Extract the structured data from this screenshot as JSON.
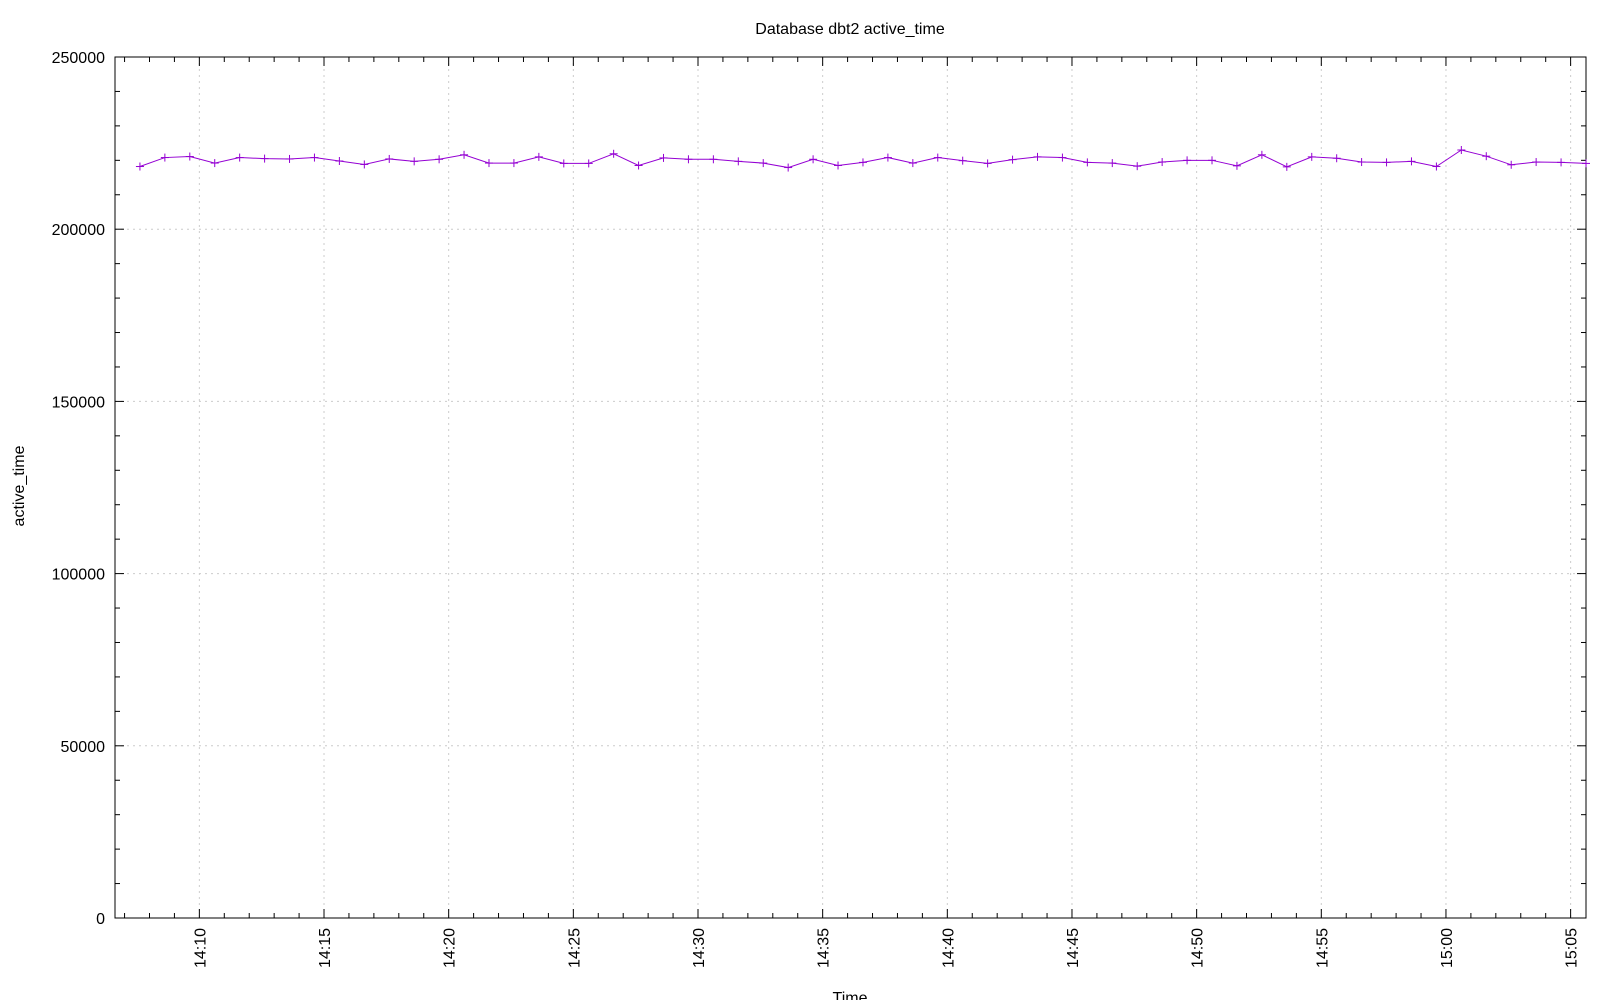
{
  "chart_data": {
    "type": "line",
    "title": "Database dbt2 active_time",
    "xlabel": "Time",
    "ylabel": "active_time",
    "x_ticks": [
      "14:10",
      "14:15",
      "14:20",
      "14:25",
      "14:30",
      "14:35",
      "14:40",
      "14:45",
      "14:50",
      "14:55",
      "15:00",
      "15:05"
    ],
    "y_ticks": [
      0,
      50000,
      100000,
      150000,
      200000,
      250000
    ],
    "ylim": [
      0,
      250000
    ],
    "xlim": [
      "14:06:37",
      "15:05:37"
    ],
    "grid": true,
    "series": [
      {
        "color": "#9400d3",
        "marker": "plus",
        "x": [
          "14:07:37",
          "14:08:37",
          "14:09:37",
          "14:10:37",
          "14:11:37",
          "14:12:37",
          "14:13:37",
          "14:14:37",
          "14:15:37",
          "14:16:37",
          "14:17:37",
          "14:18:37",
          "14:19:37",
          "14:20:37",
          "14:21:37",
          "14:22:37",
          "14:23:37",
          "14:24:37",
          "14:25:37",
          "14:26:37",
          "14:27:37",
          "14:28:37",
          "14:29:37",
          "14:30:37",
          "14:31:37",
          "14:32:37",
          "14:33:37",
          "14:34:37",
          "14:35:37",
          "14:36:37",
          "14:37:37",
          "14:38:37",
          "14:39:37",
          "14:40:37",
          "14:41:37",
          "14:42:37",
          "14:43:37",
          "14:44:37",
          "14:45:37",
          "14:46:37",
          "14:47:37",
          "14:48:37",
          "14:49:37",
          "14:50:37",
          "14:51:37",
          "14:52:37",
          "14:53:37",
          "14:54:37",
          "14:55:37",
          "14:56:37",
          "14:57:37",
          "14:58:37",
          "14:59:37",
          "15:00:37",
          "15:01:37",
          "15:02:37",
          "15:03:37",
          "15:04:37",
          "15:05:37"
        ],
        "values": [
          218200,
          220800,
          221100,
          219200,
          220800,
          220500,
          220400,
          220800,
          219800,
          218800,
          220400,
          219700,
          220300,
          221600,
          219200,
          219200,
          221000,
          219100,
          219100,
          221900,
          218500,
          220700,
          220300,
          220300,
          219700,
          219200,
          217900,
          220300,
          218500,
          219400,
          220800,
          219200,
          220800,
          219900,
          219100,
          220200,
          221000,
          220800,
          219400,
          219200,
          218300,
          219500,
          220000,
          220000,
          218400,
          221600,
          218100,
          221000,
          220600,
          219500,
          219400,
          219700,
          218200,
          223000,
          221200,
          218700,
          219500,
          219400,
          219100
        ]
      }
    ]
  }
}
